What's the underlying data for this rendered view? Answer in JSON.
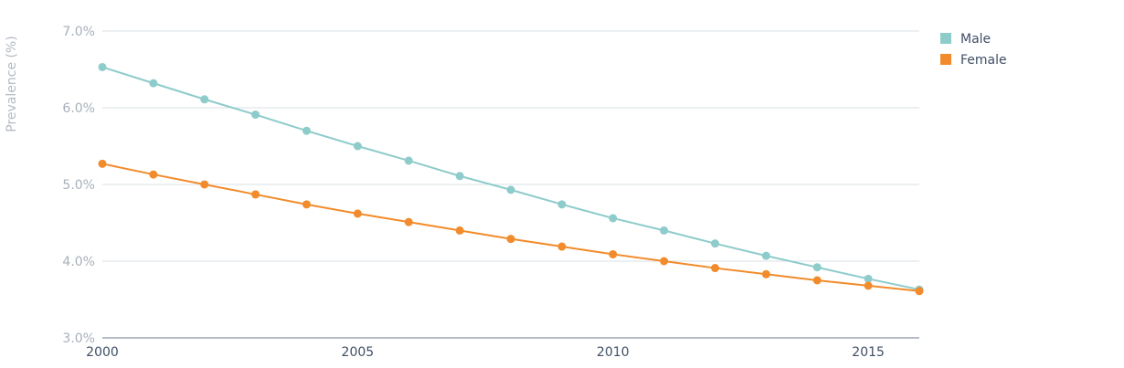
{
  "chart_data": {
    "type": "line",
    "title": "",
    "xlabel": "",
    "ylabel": "Prevalence (%)",
    "x": [
      2000,
      2001,
      2002,
      2003,
      2004,
      2005,
      2006,
      2007,
      2008,
      2009,
      2010,
      2011,
      2012,
      2013,
      2014,
      2015,
      2016
    ],
    "xlim": [
      2000,
      2016
    ],
    "ylim": [
      3.0,
      7.0
    ],
    "x_ticks": [
      2000,
      2005,
      2010,
      2015
    ],
    "x_tick_labels": [
      "2000",
      "2005",
      "2010",
      "2015"
    ],
    "y_ticks": [
      3.0,
      4.0,
      5.0,
      6.0,
      7.0
    ],
    "y_tick_labels": [
      "3.0%",
      "4.0%",
      "5.0%",
      "6.0%",
      "7.0%"
    ],
    "grid": true,
    "legend_position": "top-right",
    "series": [
      {
        "name": "Male",
        "color": "#8ecbcb",
        "values": [
          6.53,
          6.32,
          6.11,
          5.91,
          5.7,
          5.5,
          5.31,
          5.11,
          4.93,
          4.74,
          4.56,
          4.4,
          4.23,
          4.07,
          3.92,
          3.77,
          3.63
        ]
      },
      {
        "name": "Female",
        "color": "#f28b2b",
        "values": [
          5.27,
          5.13,
          5.0,
          4.87,
          4.74,
          4.62,
          4.51,
          4.4,
          4.29,
          4.19,
          4.09,
          4.0,
          3.91,
          3.83,
          3.75,
          3.68,
          3.61
        ]
      }
    ]
  }
}
